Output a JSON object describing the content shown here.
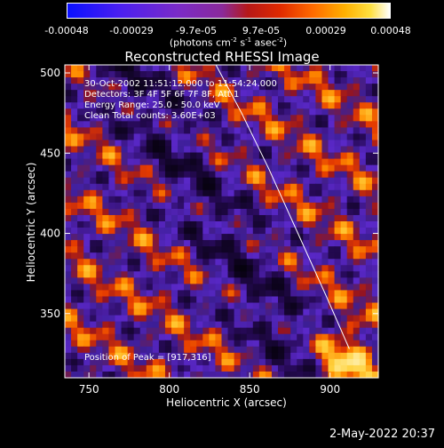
{
  "colorbar": {
    "ticks": [
      "-0.00048",
      "-0.00029",
      "-9.7e-05",
      "9.7e-05",
      "0.00029",
      "0.00048"
    ],
    "unit_prefix": "(photons cm",
    "unit_exp1": "-2",
    "unit_mid1": " s",
    "unit_exp2": "-1",
    "unit_mid2": " asec",
    "unit_exp3": "-2",
    "unit_suffix": ")"
  },
  "info": {
    "time": "30-Oct-2002 11:51:12.000 to 11:54:24.000",
    "detectors": "Detectors: 3F 4F 5F 6F 7F 8F, Att 1",
    "energy": "Energy Range: 25.0 - 50.0 keV",
    "clean": "Clean     Total counts: 3.60E+03"
  },
  "peak_text": "Position of Peak = [917,316]",
  "footer_date": "2-May-2022 20:37",
  "chart_data": {
    "type": "heatmap",
    "title": "Reconstructed RHESSI Image",
    "xlabel": "Heliocentric X (arcsec)",
    "ylabel": "Heliocentric Y (arcsec)",
    "xlim": [
      735,
      930
    ],
    "ylim": [
      310,
      505
    ],
    "xticks": [
      750,
      800,
      850,
      900
    ],
    "yticks": [
      350,
      400,
      450,
      500
    ],
    "colorbar_range": [
      -0.00048,
      0.00048
    ],
    "peak": [
      917,
      316
    ],
    "limb_curve": {
      "x": [
        829,
        845,
        862,
        880,
        898,
        912
      ],
      "y": [
        505,
        475,
        440,
        400,
        360,
        328
      ]
    }
  }
}
